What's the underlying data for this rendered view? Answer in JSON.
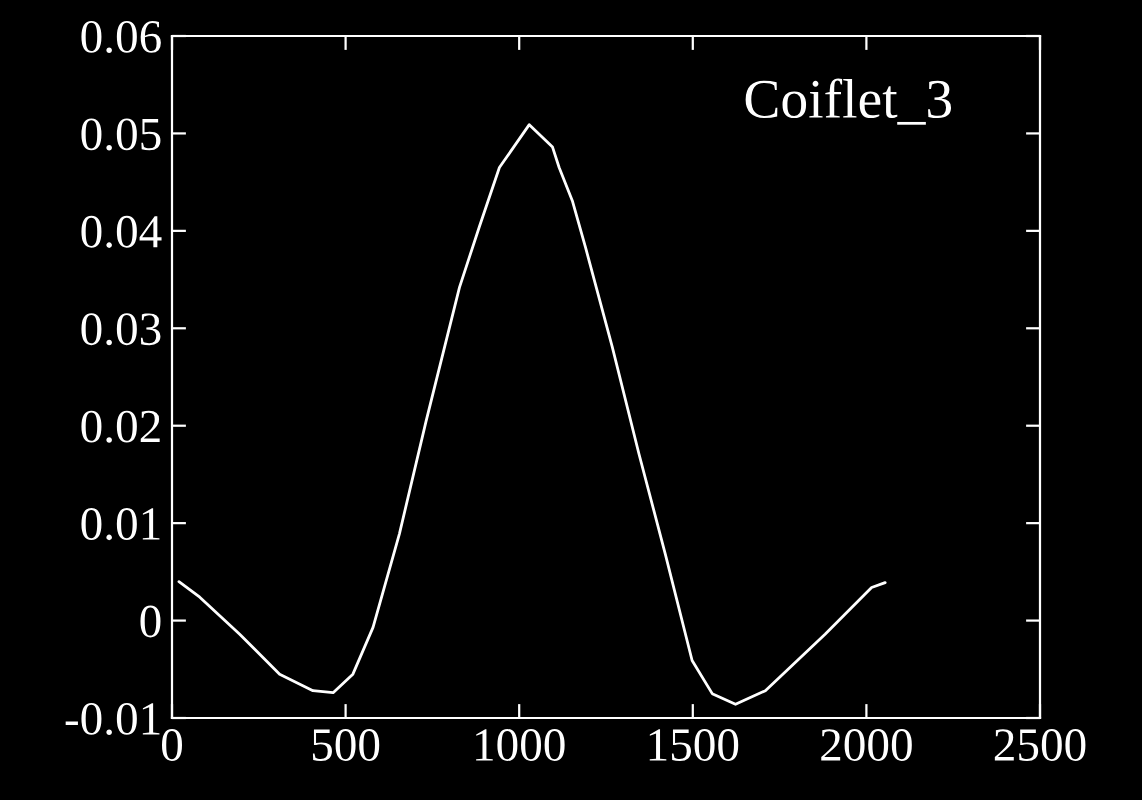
{
  "chart_data": {
    "type": "line",
    "annotations": [
      "Coiflet_3"
    ],
    "x": [
      20,
      80,
      195,
      310,
      406,
      464,
      521,
      579,
      655,
      732,
      828,
      885,
      943,
      1029,
      1096,
      1115,
      1153,
      1191,
      1268,
      1345,
      1421,
      1498,
      1556,
      1623,
      1709,
      1881,
      2015,
      2054
    ],
    "series": [
      {
        "color": "#ffffff",
        "values": [
          0.004,
          0.0024,
          -0.0014,
          -0.0055,
          -0.0072,
          -0.0074,
          -0.0055,
          -0.0007,
          0.0089,
          0.0205,
          0.0342,
          0.0404,
          0.0465,
          0.0509,
          0.0486,
          0.0465,
          0.0431,
          0.0383,
          0.0281,
          0.0171,
          0.0068,
          -0.0041,
          -0.0075,
          -0.0086,
          -0.0072,
          -0.0014,
          0.0034,
          0.0039
        ]
      }
    ],
    "xlim": [
      0,
      2500
    ],
    "xticks": [
      0,
      500,
      1000,
      1500,
      2000,
      2500
    ],
    "ylim": [
      -0.01,
      0.06
    ],
    "yticks": [
      -0.01,
      0,
      0.01,
      0.02,
      0.03,
      0.04,
      0.05,
      0.06
    ],
    "grid": false,
    "legend": false
  }
}
